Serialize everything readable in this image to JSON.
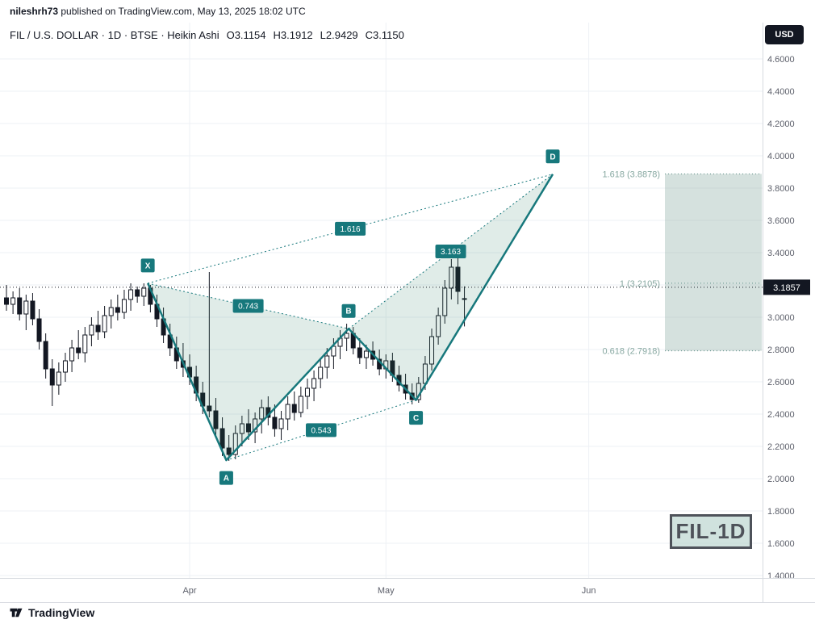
{
  "header": {
    "username": "nileshrh73",
    "published_text": " published on TradingView.com, May 13, 2025 18:02 UTC"
  },
  "legend": {
    "symbol_line": "FIL / U.S. DOLLAR · 1D · BTSE · Heikin Ashi",
    "o": "O3.1154",
    "h": "H3.1912",
    "l": "L2.9429",
    "c": "C3.1150"
  },
  "currency_button": "USD",
  "watermark": "FIL-1D",
  "footer": {
    "brand": "TradingView"
  },
  "chart_data": {
    "type": "candlestick",
    "style": "Heikin Ashi",
    "symbol": "FIL / U.S. DOLLAR",
    "interval": "1D",
    "exchange": "BTSE",
    "price_axis": {
      "ticks": [
        "4.6000",
        "4.4000",
        "4.2000",
        "4.0000",
        "3.8000",
        "3.6000",
        "3.4000",
        "3.2000",
        "3.0000",
        "2.8000",
        "2.6000",
        "2.4000",
        "2.2000",
        "2.0000",
        "1.8000",
        "1.6000",
        "1.4000"
      ],
      "range": [
        1.4,
        4.6
      ],
      "current_price": 3.1857,
      "current_price_label": "3.1857"
    },
    "time_axis": {
      "months": [
        {
          "label": "Apr",
          "index": 28
        },
        {
          "label": "May",
          "index": 58
        },
        {
          "label": "Jun",
          "index": 89
        }
      ]
    },
    "candles": [
      [
        3.12,
        3.2,
        3.04,
        3.08
      ],
      [
        3.08,
        3.16,
        3.02,
        3.12
      ],
      [
        3.12,
        3.18,
        2.98,
        3.02
      ],
      [
        3.02,
        3.14,
        2.92,
        3.1
      ],
      [
        3.1,
        3.15,
        2.95,
        2.99
      ],
      [
        2.99,
        3.05,
        2.8,
        2.85
      ],
      [
        2.85,
        2.9,
        2.62,
        2.68
      ],
      [
        2.68,
        2.74,
        2.45,
        2.58
      ],
      [
        2.58,
        2.72,
        2.52,
        2.66
      ],
      [
        2.66,
        2.78,
        2.6,
        2.73
      ],
      [
        2.73,
        2.86,
        2.66,
        2.81
      ],
      [
        2.81,
        2.92,
        2.74,
        2.78
      ],
      [
        2.78,
        2.94,
        2.72,
        2.89
      ],
      [
        2.89,
        3.0,
        2.82,
        2.95
      ],
      [
        2.95,
        3.04,
        2.86,
        2.91
      ],
      [
        2.91,
        3.07,
        2.87,
        3.01
      ],
      [
        3.01,
        3.11,
        2.93,
        3.06
      ],
      [
        3.06,
        3.14,
        2.98,
        3.03
      ],
      [
        3.03,
        3.17,
        2.99,
        3.11
      ],
      [
        3.11,
        3.21,
        3.04,
        3.17
      ],
      [
        3.17,
        3.19,
        3.09,
        3.13
      ],
      [
        3.13,
        3.21,
        3.07,
        3.18
      ],
      [
        3.18,
        3.2,
        3.03,
        3.08
      ],
      [
        3.08,
        3.14,
        2.94,
        2.99
      ],
      [
        2.99,
        3.06,
        2.84,
        2.89
      ],
      [
        2.89,
        2.96,
        2.76,
        2.81
      ],
      [
        2.81,
        2.88,
        2.68,
        2.73
      ],
      [
        2.73,
        2.84,
        2.63,
        2.69
      ],
      [
        2.69,
        2.77,
        2.58,
        2.63
      ],
      [
        2.63,
        2.7,
        2.48,
        2.53
      ],
      [
        2.53,
        2.6,
        2.4,
        2.45
      ],
      [
        2.45,
        3.28,
        2.38,
        2.42
      ],
      [
        2.42,
        2.5,
        2.26,
        2.31
      ],
      [
        2.31,
        2.38,
        2.14,
        2.19
      ],
      [
        2.19,
        2.27,
        2.11,
        2.15
      ],
      [
        2.15,
        2.33,
        2.12,
        2.28
      ],
      [
        2.28,
        2.39,
        2.2,
        2.34
      ],
      [
        2.34,
        2.43,
        2.24,
        2.29
      ],
      [
        2.29,
        2.41,
        2.22,
        2.37
      ],
      [
        2.37,
        2.49,
        2.28,
        2.44
      ],
      [
        2.44,
        2.51,
        2.33,
        2.38
      ],
      [
        2.38,
        2.46,
        2.26,
        2.31
      ],
      [
        2.31,
        2.42,
        2.24,
        2.37
      ],
      [
        2.37,
        2.51,
        2.3,
        2.46
      ],
      [
        2.46,
        2.54,
        2.36,
        2.41
      ],
      [
        2.41,
        2.57,
        2.38,
        2.51
      ],
      [
        2.51,
        2.62,
        2.43,
        2.56
      ],
      [
        2.56,
        2.67,
        2.48,
        2.62
      ],
      [
        2.62,
        2.74,
        2.56,
        2.69
      ],
      [
        2.69,
        2.81,
        2.62,
        2.76
      ],
      [
        2.76,
        2.87,
        2.68,
        2.82
      ],
      [
        2.82,
        2.92,
        2.74,
        2.87
      ],
      [
        2.87,
        2.96,
        2.79,
        2.9
      ],
      [
        2.9,
        2.94,
        2.77,
        2.81
      ],
      [
        2.81,
        2.87,
        2.71,
        2.75
      ],
      [
        2.75,
        2.83,
        2.68,
        2.79
      ],
      [
        2.79,
        2.85,
        2.7,
        2.74
      ],
      [
        2.74,
        2.8,
        2.64,
        2.68
      ],
      [
        2.68,
        2.77,
        2.62,
        2.73
      ],
      [
        2.73,
        2.78,
        2.6,
        2.64
      ],
      [
        2.64,
        2.7,
        2.54,
        2.58
      ],
      [
        2.58,
        2.65,
        2.49,
        2.53
      ],
      [
        2.53,
        2.59,
        2.46,
        2.49
      ],
      [
        2.49,
        2.63,
        2.47,
        2.59
      ],
      [
        2.59,
        2.76,
        2.55,
        2.71
      ],
      [
        2.71,
        2.93,
        2.67,
        2.88
      ],
      [
        2.88,
        3.06,
        2.83,
        3.01
      ],
      [
        3.01,
        3.23,
        2.96,
        3.18
      ],
      [
        3.18,
        3.36,
        3.11,
        3.31
      ],
      [
        3.31,
        3.4,
        3.08,
        3.16
      ],
      [
        3.1154,
        3.1912,
        2.9429,
        3.115
      ]
    ],
    "pattern": {
      "type": "XABCD",
      "points": [
        {
          "label": "X",
          "index": 21.6,
          "price": 3.2105,
          "position": "high"
        },
        {
          "label": "A",
          "index": 33.6,
          "price": 2.1145,
          "position": "low"
        },
        {
          "label": "B",
          "index": 52.3,
          "price": 2.929,
          "position": "high"
        },
        {
          "label": "C",
          "index": 62.6,
          "price": 2.487,
          "position": "low"
        },
        {
          "label": "D",
          "index": 83.5,
          "price": 3.886,
          "position": "high"
        }
      ],
      "ratios": [
        {
          "label": "0.743",
          "from": "X",
          "to": "B"
        },
        {
          "label": "0.543",
          "from": "A",
          "to": "C"
        },
        {
          "label": "1.616",
          "from": "X",
          "to": "D"
        },
        {
          "label": "3.163",
          "from": "B",
          "to": "D"
        }
      ]
    },
    "fib": {
      "levels": [
        {
          "label": "1.618 (3.8878)",
          "price": 3.8878
        },
        {
          "label": "1 (3.2105)",
          "price": 3.2105
        },
        {
          "label": "0.618 (2.7918)",
          "price": 2.7918
        }
      ],
      "zone_top": 3.8878,
      "zone_bottom": 2.7918
    },
    "colors": {
      "pattern": "#17787c",
      "pattern_fill": "rgba(46,125,102,0.15)",
      "candle_up_fill": "#ffffff",
      "candle_down_fill": "#131722",
      "candle_border": "#131722",
      "fib_label": "#87a8a1",
      "zone_fill": "rgba(135,168,161,0.35)",
      "zone_line": "#5d8d86",
      "current_price_line": "#131722",
      "axis_text": "#5d606b",
      "grid": "#eef1f5",
      "axis_line": "#d7dae0",
      "tag_bg": "#131722",
      "tag_text": "#ffffff"
    }
  }
}
